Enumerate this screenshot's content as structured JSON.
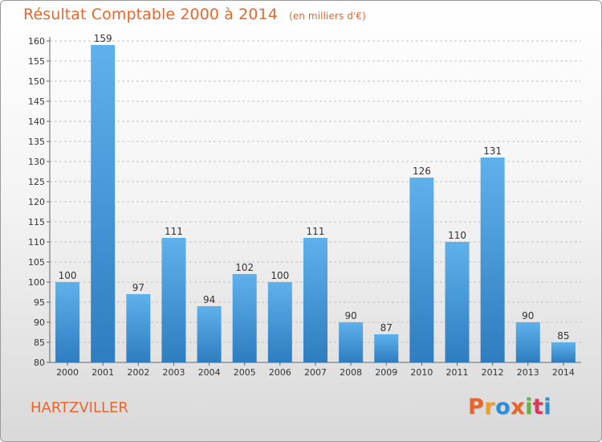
{
  "header": {
    "title": "Résultat Comptable 2000 à 2014",
    "subtitle": "(en milliers d'€)"
  },
  "footer": {
    "commune": "HARTZVILLER",
    "brand": "Proxiti"
  },
  "colors": {
    "title": "#e8662c",
    "bar_top": "#5fb1ec",
    "bar_bottom": "#2d7dc0",
    "brand": [
      "#e8662c",
      "#f0a020",
      "#2a8fd8",
      "#e8662c",
      "#6ab04c",
      "#d8385b",
      "#2a8fd8"
    ]
  },
  "chart_data": {
    "type": "bar",
    "categories": [
      "2000",
      "2001",
      "2002",
      "2003",
      "2004",
      "2005",
      "2006",
      "2007",
      "2008",
      "2009",
      "2010",
      "2011",
      "2012",
      "2013",
      "2014"
    ],
    "values": [
      100,
      159,
      97,
      111,
      94,
      102,
      100,
      111,
      90,
      87,
      126,
      110,
      131,
      90,
      85
    ],
    "ylim": [
      80,
      160
    ],
    "yticks": [
      80,
      85,
      90,
      95,
      100,
      105,
      110,
      115,
      120,
      125,
      130,
      135,
      140,
      145,
      150,
      155,
      160
    ],
    "grid": true,
    "legend": "none"
  }
}
